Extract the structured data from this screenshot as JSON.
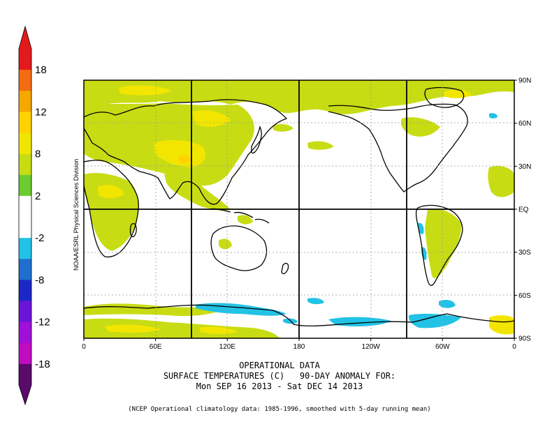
{
  "colorbar": {
    "labels": [
      "18",
      "12",
      "8",
      "2",
      "-2",
      "-8",
      "-12",
      "-18"
    ],
    "colors": [
      "#e31a1c",
      "#f56d13",
      "#f5a800",
      "#ffd200",
      "#f2e600",
      "#c8dc14",
      "#6ccc2e",
      "#ffffff",
      "#ffffff",
      "#22c2e6",
      "#1e6fd0",
      "#1c28c6",
      "#6a14d8",
      "#a010d8",
      "#c00cc0",
      "#5a0a6a"
    ]
  },
  "map": {
    "lat_labels": [
      "90N",
      "60N",
      "30N",
      "EQ",
      "30S",
      "60S",
      "90S"
    ],
    "lon_labels": [
      "0",
      "60E",
      "120E",
      "180",
      "120W",
      "60W",
      "0"
    ],
    "side_label": "NOAA/ESRL Physical Sciences Division",
    "colors": {
      "ocean": "#ffffff",
      "anomaly_2_8": "#c8dc14",
      "anomaly_8_12": "#f2e600",
      "anomaly_12_18": "#ffd200",
      "anomaly_neg2_neg8": "#22c2e6",
      "coastline": "#000000",
      "grid": "#000000"
    }
  },
  "caption": {
    "line1": "OPERATIONAL DATA",
    "line2": "SURFACE TEMPERATURES (C)   90-DAY ANOMALY FOR:",
    "line3": "Mon SEP 16 2013 - Sat DEC 14 2013",
    "note": "(NCEP Operational climatology data: 1985-1996, smoothed with 5-day running mean)"
  }
}
